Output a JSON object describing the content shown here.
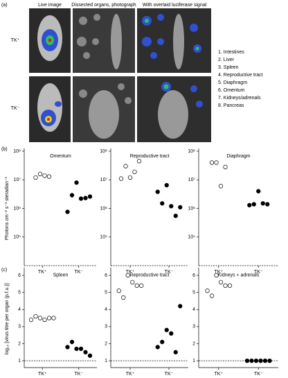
{
  "figure": {
    "panel_labels": [
      "(a)",
      "(b)",
      "(c)"
    ],
    "photo_headers": [
      "Live image",
      "Dissected organs, photograph",
      "With overlaid luciferase signal"
    ],
    "row_labels": [
      "TK⁺",
      "TK⁻"
    ],
    "organ_list": [
      "1. Intestines",
      "2. Liver",
      "3. Spleen",
      "4. Reproductive tract",
      "5. Diaphragm",
      "6. Omentum",
      "7. Kidneys/adrenals",
      "8. Pancreas"
    ]
  },
  "chart_data": [
    {
      "type": "strip",
      "title": "Omentum",
      "ylabel": "Photons cm⁻² s⁻¹ steradian⁻¹",
      "log_scale": true,
      "categories": [
        "TK⁺",
        "TK⁻"
      ],
      "ylim": [
        10000,
        100000000
      ],
      "yticks": [
        {
          "value": 100000,
          "label": "10⁵"
        },
        {
          "value": 1000000,
          "label": "10⁶"
        },
        {
          "value": 10000000,
          "label": "10⁷"
        },
        {
          "value": 100000000,
          "label": "10⁸"
        }
      ],
      "series": [
        {
          "color": "#ffffff",
          "values": [
            12000000,
            16000000,
            14000000,
            13000000
          ]
        },
        {
          "color": "#000000",
          "values": [
            760000,
            2900000,
            8000000,
            2200000,
            2300000,
            2600000
          ]
        }
      ]
    },
    {
      "type": "strip",
      "title": "Reproductive tract",
      "log_scale": true,
      "categories": [
        "TK⁺",
        "TK⁻"
      ],
      "ylim": [
        10000,
        100000000
      ],
      "yticks": [
        {
          "value": 100000,
          "label": "10⁵"
        },
        {
          "value": 1000000,
          "label": "10⁶"
        },
        {
          "value": 10000000,
          "label": "10⁷"
        },
        {
          "value": 100000000,
          "label": "10⁸"
        }
      ],
      "series": [
        {
          "color": "#ffffff",
          "values": [
            11000000,
            30000000,
            12000000,
            19000000,
            45000000
          ]
        },
        {
          "color": "#000000",
          "values": [
            3800000,
            1500000,
            6500000,
            1200000,
            550000,
            1100000
          ]
        }
      ]
    },
    {
      "type": "strip",
      "title": "Diaphragm",
      "log_scale": true,
      "categories": [
        "TK⁺",
        "TK⁻"
      ],
      "ylim": [
        10000,
        100000000
      ],
      "yticks": [
        {
          "value": 100000,
          "label": "10⁵"
        },
        {
          "value": 1000000,
          "label": "10⁶"
        },
        {
          "value": 10000000,
          "label": "10⁷"
        },
        {
          "value": 100000000,
          "label": "10⁸"
        }
      ],
      "series": [
        {
          "color": "#ffffff",
          "values": [
            40000000,
            40000000,
            6000000,
            28000000
          ]
        },
        {
          "color": "#000000",
          "values": [
            1300000,
            1400000,
            4000000,
            1500000,
            1400000
          ]
        }
      ]
    },
    {
      "type": "strip",
      "title": "Spleen",
      "ylabel": "log₁₀ [virus titre per organ (p.f.u.)]",
      "categories": [
        "TK⁺",
        "TK⁻"
      ],
      "ylim": [
        0.6,
        6.3
      ],
      "yticks": [
        1,
        2,
        3,
        4,
        5,
        6
      ],
      "detection_limit": 1,
      "series": [
        {
          "color": "#ffffff",
          "values": [
            3.4,
            3.6,
            3.5,
            3.4,
            3.5,
            3.5
          ]
        },
        {
          "color": "#000000",
          "values": [
            1.8,
            2.1,
            1.7,
            1.7,
            1.5,
            1.3
          ]
        }
      ]
    },
    {
      "type": "strip",
      "title": "Reproductive tract",
      "categories": [
        "TK⁺",
        "TK⁻"
      ],
      "ylim": [
        0.6,
        6.3
      ],
      "yticks": [
        1,
        2,
        3,
        4,
        5,
        6
      ],
      "detection_limit": 1,
      "series": [
        {
          "color": "#ffffff",
          "values": [
            5.1,
            4.7,
            6.0,
            5.6,
            5.4,
            5.4
          ]
        },
        {
          "color": "#000000",
          "values": [
            1.8,
            2.1,
            2.8,
            2.6,
            1.5,
            4.2
          ]
        }
      ]
    },
    {
      "type": "strip",
      "title": "Kidneys + adrenals",
      "categories": [
        "TK⁺",
        "TK⁻"
      ],
      "ylim": [
        0.6,
        6.3
      ],
      "yticks": [
        1,
        2,
        3,
        4,
        5,
        6
      ],
      "detection_limit": 1,
      "series": [
        {
          "color": "#ffffff",
          "values": [
            5.1,
            4.8,
            6.0,
            5.6,
            5.4,
            5.4
          ]
        },
        {
          "color": "#000000",
          "values": [
            1,
            1,
            1,
            1,
            1,
            1
          ]
        }
      ]
    }
  ]
}
